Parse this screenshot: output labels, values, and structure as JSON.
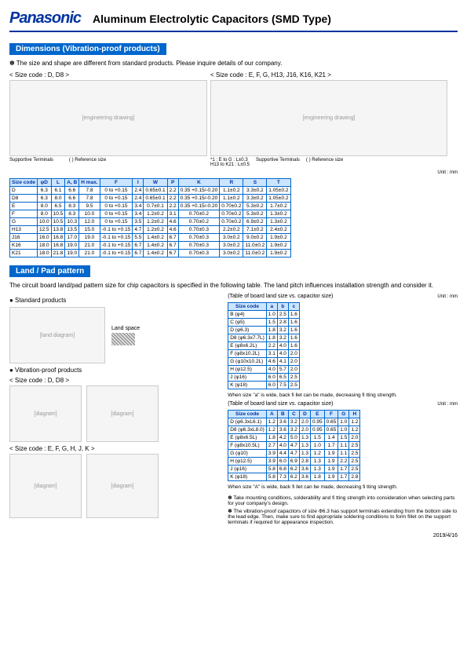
{
  "header": {
    "logo": "Panasonic",
    "title": "Aluminum Electrolytic Capacitors (SMD Type)"
  },
  "section1": {
    "title": "Dimensions (Vibration-proof products)",
    "note": "✽ The size and shape are different from standard products. Please inquire details of our company.",
    "leftLabel": "< Size code : D, D8 >",
    "rightLabel": "< Size code : E, F, G, H13, J16, K16, K21 >",
    "supportive": "Supportive Terminals",
    "refSize": "( ) Reference size",
    "note2a": "*1 : E to G : L±0.3",
    "note2b": "H13 to K21 : L±0.5",
    "unit": "Unit : mm"
  },
  "table1": {
    "headers": [
      "Size code",
      "φD",
      "L",
      "A, B",
      "H max.",
      "F",
      "I",
      "W",
      "P",
      "K",
      "R",
      "S",
      "T"
    ],
    "rows": [
      [
        "D",
        "6.3",
        "6.1",
        "6.6",
        "7.8",
        "0 to +0.15",
        "2.4",
        "0.65±0.1",
        "2.2",
        "0.35 +0.15/-0.20",
        "1.1±0.2",
        "3.3±0.2",
        "1.05±0.2"
      ],
      [
        "D8",
        "6.3",
        "8.0",
        "6.6",
        "7.8",
        "0 to +0.15",
        "2.4",
        "0.65±0.1",
        "2.2",
        "0.35 +0.15/-0.20",
        "1.1±0.2",
        "3.3±0.2",
        "1.05±0.2"
      ],
      [
        "E",
        "8.0",
        "6.5",
        "8.3",
        "9.5",
        "0 to +0.15",
        "3.4",
        "0.7±0.1",
        "2.2",
        "0.35 +0.15/-0.20",
        "0.70±0.2",
        "5.3±0.2",
        "1.7±0.2"
      ],
      [
        "F",
        "8.0",
        "10.5",
        "8.3",
        "10.0",
        "0 to +0.15",
        "3.4",
        "1.2±0.2",
        "3.1",
        "0.70±0.2",
        "0.70±0.2",
        "5.3±0.2",
        "1.3±0.2"
      ],
      [
        "G",
        "10.0",
        "10.5",
        "10.3",
        "12.0",
        "0 to +0.15",
        "3.5",
        "1.2±0.2",
        "4.6",
        "0.70±0.2",
        "0.70±0.2",
        "6.9±0.2",
        "1.3±0.2"
      ],
      [
        "H13",
        "12.5",
        "13.8",
        "13.5",
        "15.0",
        "-0.1 to +0.15",
        "4.7",
        "1.2±0.2",
        "4.6",
        "0.70±0.3",
        "2.2±0.2",
        "7.1±0.2",
        "2.4±0.2"
      ],
      [
        "J16",
        "16.0",
        "16.8",
        "17.0",
        "19.0",
        "-0.1 to +0.15",
        "5.5",
        "1.4±0.2",
        "6.7",
        "0.70±0.3",
        "3.0±0.2",
        "9.0±0.2",
        "1.9±0.2"
      ],
      [
        "K16",
        "18.0",
        "16.8",
        "19.0",
        "21.0",
        "-0.1 to +0.15",
        "6.7",
        "1.4±0.2",
        "6.7",
        "0.70±0.3",
        "3.0±0.2",
        "11.0±0.2",
        "1.9±0.2"
      ],
      [
        "K21",
        "18.0",
        "21.8",
        "19.0",
        "21.0",
        "-0.1 to +0.15",
        "6.7",
        "1.4±0.2",
        "6.7",
        "0.70±0.3",
        "3.0±0.2",
        "11.0±0.2",
        "1.9±0.2"
      ]
    ]
  },
  "section2": {
    "title": "Land / Pad pattern",
    "desc": "The circuit board land/pad pattern size for chip capacitors is specified in the following table. The land pitch influences installation strength and consider it.",
    "standard": "● Standard products",
    "vibration": "● Vibration-proof products",
    "landSpace": "Land space",
    "sizeD": "< Size code : D, D8 >",
    "sizeE": "< Size code : E, F, G, H, J, K >"
  },
  "table2": {
    "caption": "(Table of board land size vs. capacitor size)",
    "unit": "Unit : mm",
    "headers": [
      "Size code",
      "a",
      "b",
      "c"
    ],
    "rows": [
      [
        "B (φ4)",
        "1.0",
        "2.5",
        "1.6"
      ],
      [
        "C (φ5)",
        "1.5",
        "2.8",
        "1.6"
      ],
      [
        "D (φ6.3)",
        "1.8",
        "3.2",
        "1.6"
      ],
      [
        "D8 (φ6.3x7.7L)",
        "1.8",
        "3.2",
        "1.6"
      ],
      [
        "E (φ8x6.2L)",
        "2.2",
        "4.0",
        "1.6"
      ],
      [
        "F (φ8x10.2L)",
        "3.1",
        "4.0",
        "2.0"
      ],
      [
        "G (φ10x10.2L)",
        "4.6",
        "4.1",
        "2.0"
      ],
      [
        "H (φ12.5)",
        "4.0",
        "5.7",
        "2.0"
      ],
      [
        "J (φ16)",
        "6.0",
        "6.5",
        "2.5"
      ],
      [
        "K (φ18)",
        "6.0",
        "7.5",
        "2.5"
      ]
    ],
    "footnote": "When size \"a\" is wide, back fi llet can be made, decreasing fi tting strength."
  },
  "table3": {
    "caption": "(Table of board land size vs. capacitor size)",
    "unit": "Unit : mm",
    "headers": [
      "Size code",
      "A",
      "B",
      "C",
      "D",
      "E",
      "F",
      "G",
      "H"
    ],
    "rows": [
      [
        "D (φ6.3xL6.1)",
        "1.2",
        "3.6",
        "3.2",
        "2.0",
        "0.95",
        "0.65",
        "1.0",
        "1.2"
      ],
      [
        "D8 (φ6.3xL8.0)",
        "1.2",
        "3.6",
        "3.2",
        "2.0",
        "0.95",
        "0.65",
        "1.0",
        "1.2"
      ],
      [
        "E (φ8x6.5L)",
        "1.8",
        "4.2",
        "5.0",
        "1.3",
        "1.5",
        "1.4",
        "1.5",
        "2.0"
      ],
      [
        "F (φ8x10.5L)",
        "2.7",
        "4.0",
        "4.7",
        "1.3",
        "1.0",
        "1.7",
        "1.1",
        "2.5"
      ],
      [
        "G (φ10)",
        "3.9",
        "4.4",
        "4.7",
        "1.3",
        "1.2",
        "1.9",
        "1.1",
        "2.5"
      ],
      [
        "H (φ12.5)",
        "3.9",
        "6.0",
        "6.9",
        "2.8",
        "1.3",
        "1.9",
        "2.2",
        "2.5"
      ],
      [
        "J (φ16)",
        "5.8",
        "6.8",
        "6.2",
        "3.6",
        "1.3",
        "1.9",
        "1.7",
        "2.5"
      ],
      [
        "K (φ18)",
        "5.8",
        "7.3",
        "6.2",
        "3.6",
        "1.8",
        "1.9",
        "1.7",
        "2.8"
      ]
    ],
    "footnote": "When size \"A\" is wide, back fi llet can be made, decreasing fi tting strength."
  },
  "endnotes": [
    "✽ Take mounting conditions, solderability and fi tting strength into consideration when selecting parts for your company's design.",
    "✽ The vibration-proof capacitors of size Φ6.3 has support terminals extending from the bottom side to the lead edge. Then, make sure to find appropriate soldering conditions to form fillet on the support terminals if required for appearance inspection."
  ],
  "footer": "2019/4/16"
}
